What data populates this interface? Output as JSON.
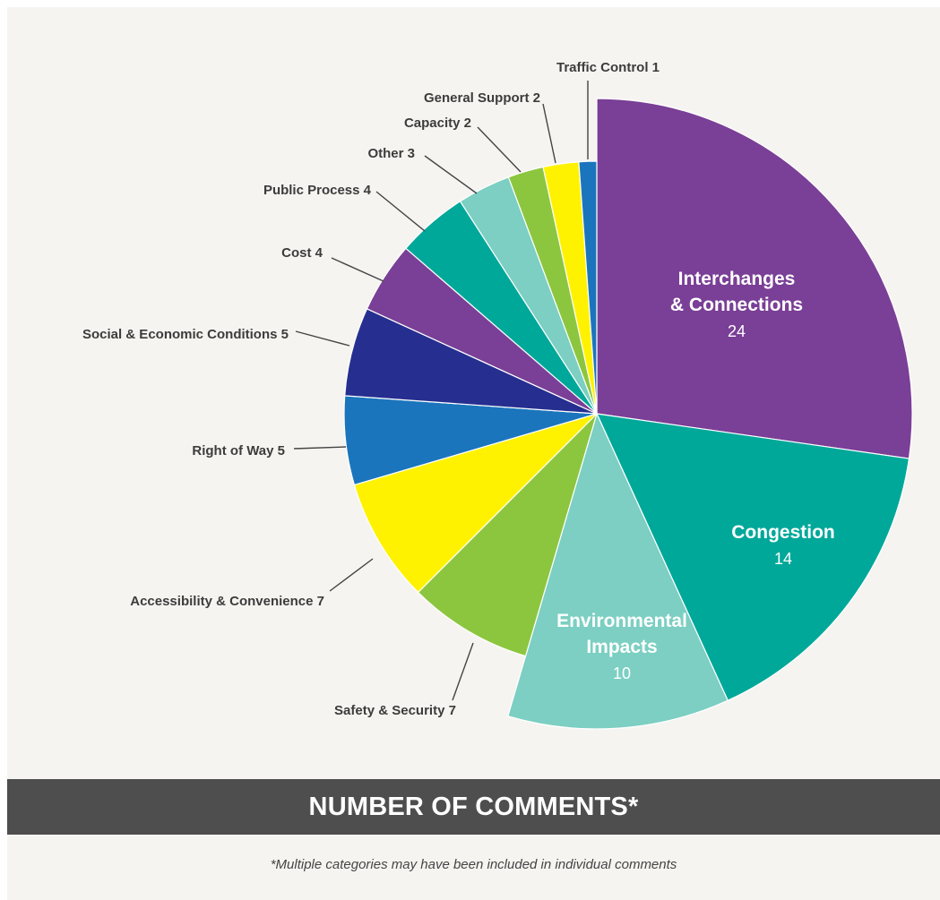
{
  "chart_data": {
    "type": "pie",
    "title": "NUMBER OF COMMENTS*",
    "footnote": "*Multiple categories may have been included in individual comments",
    "slices": [
      {
        "label": "Interchanges & Connections",
        "label_lines": [
          "Interchanges",
          "& Connections"
        ],
        "value": 24,
        "color": "#7a3f96",
        "exploded": true,
        "label_position": "inside"
      },
      {
        "label": "Congestion",
        "label_lines": [
          "Congestion"
        ],
        "value": 14,
        "color": "#00a89a",
        "exploded": true,
        "label_position": "inside"
      },
      {
        "label": "Environmental Impacts",
        "label_lines": [
          "Environmental",
          "Impacts"
        ],
        "value": 10,
        "color": "#7ccfc2",
        "exploded": true,
        "label_position": "inside"
      },
      {
        "label": "Safety & Security",
        "value": 7,
        "color": "#8cc63f",
        "label_position": "outside"
      },
      {
        "label": "Accessibility & Convenience",
        "value": 7,
        "color": "#fff200",
        "label_position": "outside"
      },
      {
        "label": "Right of Way",
        "value": 5,
        "color": "#1b75bc",
        "label_position": "outside"
      },
      {
        "label": "Social & Economic Conditions",
        "value": 5,
        "color": "#262f8f",
        "label_position": "outside"
      },
      {
        "label": "Cost",
        "value": 4,
        "color": "#7a3f96",
        "label_position": "outside"
      },
      {
        "label": "Public Process",
        "value": 4,
        "color": "#00a89a",
        "label_position": "outside"
      },
      {
        "label": "Other",
        "value": 3,
        "color": "#7ccfc2",
        "label_position": "outside"
      },
      {
        "label": "Capacity",
        "value": 2,
        "color": "#8cc63f",
        "label_position": "outside"
      },
      {
        "label": "General Support",
        "value": 2,
        "color": "#fff200",
        "label_position": "outside"
      },
      {
        "label": "Traffic Control",
        "value": 1,
        "color": "#1b75bc",
        "label_position": "outside"
      }
    ]
  }
}
